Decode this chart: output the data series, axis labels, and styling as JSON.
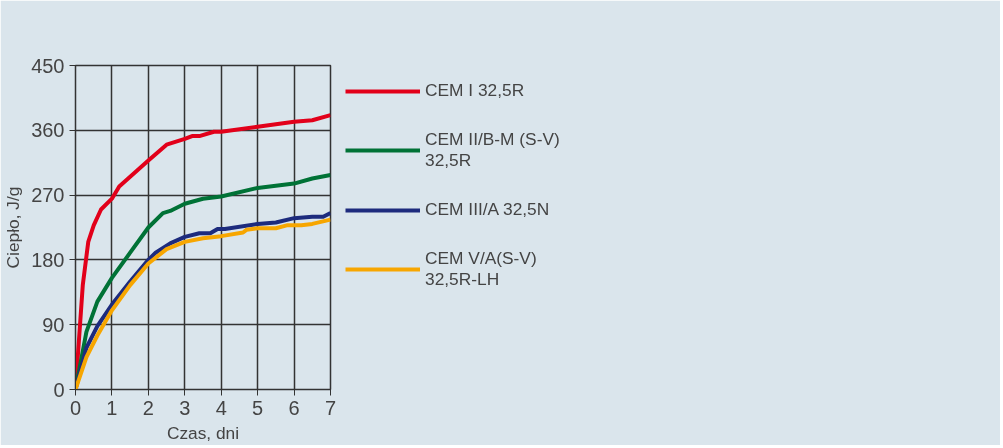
{
  "chart_data": {
    "type": "line",
    "xlabel": "Czas, dni",
    "ylabel": "Ciepło, J/g",
    "xlim": [
      0,
      7
    ],
    "xticks": [
      0,
      1,
      2,
      3,
      4,
      5,
      6,
      7
    ],
    "ylim": [
      0,
      450
    ],
    "yticks": [
      0,
      90,
      180,
      270,
      360,
      450
    ],
    "grid": true,
    "legend": "right",
    "line_style": "solid",
    "series": [
      {
        "name": "CEM I 32,5R",
        "color": "#e2001a",
        "x": [
          0,
          0.2,
          0.35,
          0.5,
          0.7,
          1,
          1.2,
          1.6,
          2,
          2.5,
          3,
          3.2,
          3.4,
          3.8,
          4,
          5,
          6,
          6.5,
          7
        ],
        "values": [
          0,
          145,
          205,
          228,
          250,
          265,
          282,
          300,
          318,
          340,
          348,
          352,
          352,
          358,
          358,
          365,
          372,
          374,
          381
        ]
      },
      {
        "name": "CEM II/B-M (S-V) 32,5R",
        "color": "#007236",
        "x": [
          0,
          0.3,
          0.6,
          1,
          1.5,
          2,
          2.4,
          2.6,
          3,
          3.5,
          4,
          5,
          6,
          6.5,
          7
        ],
        "values": [
          0,
          80,
          122,
          155,
          190,
          225,
          245,
          248,
          258,
          265,
          268,
          280,
          286,
          293,
          298
        ]
      },
      {
        "name": "CEM III/A 32,5N",
        "color": "#1d2b7d",
        "x": [
          0,
          0.3,
          0.6,
          1,
          1.5,
          2,
          2.2,
          2.6,
          3,
          3.4,
          3.7,
          3.9,
          4.1,
          5,
          5.5,
          6,
          6.5,
          6.8,
          7
        ],
        "values": [
          0,
          58,
          88,
          118,
          150,
          180,
          190,
          203,
          212,
          217,
          217,
          223,
          223,
          230,
          232,
          238,
          240,
          240,
          245
        ]
      },
      {
        "name": "CEM V/A(S-V) 32,5R-LH",
        "color": "#f7a600",
        "x": [
          0,
          0.3,
          0.6,
          1,
          1.5,
          2,
          2.5,
          3,
          3.5,
          4,
          4.6,
          4.7,
          5,
          5.5,
          5.8,
          6.2,
          6.5,
          7
        ],
        "values": [
          0,
          45,
          75,
          110,
          145,
          175,
          195,
          205,
          210,
          213,
          218,
          222,
          224,
          224,
          228,
          228,
          230,
          236
        ]
      }
    ]
  }
}
